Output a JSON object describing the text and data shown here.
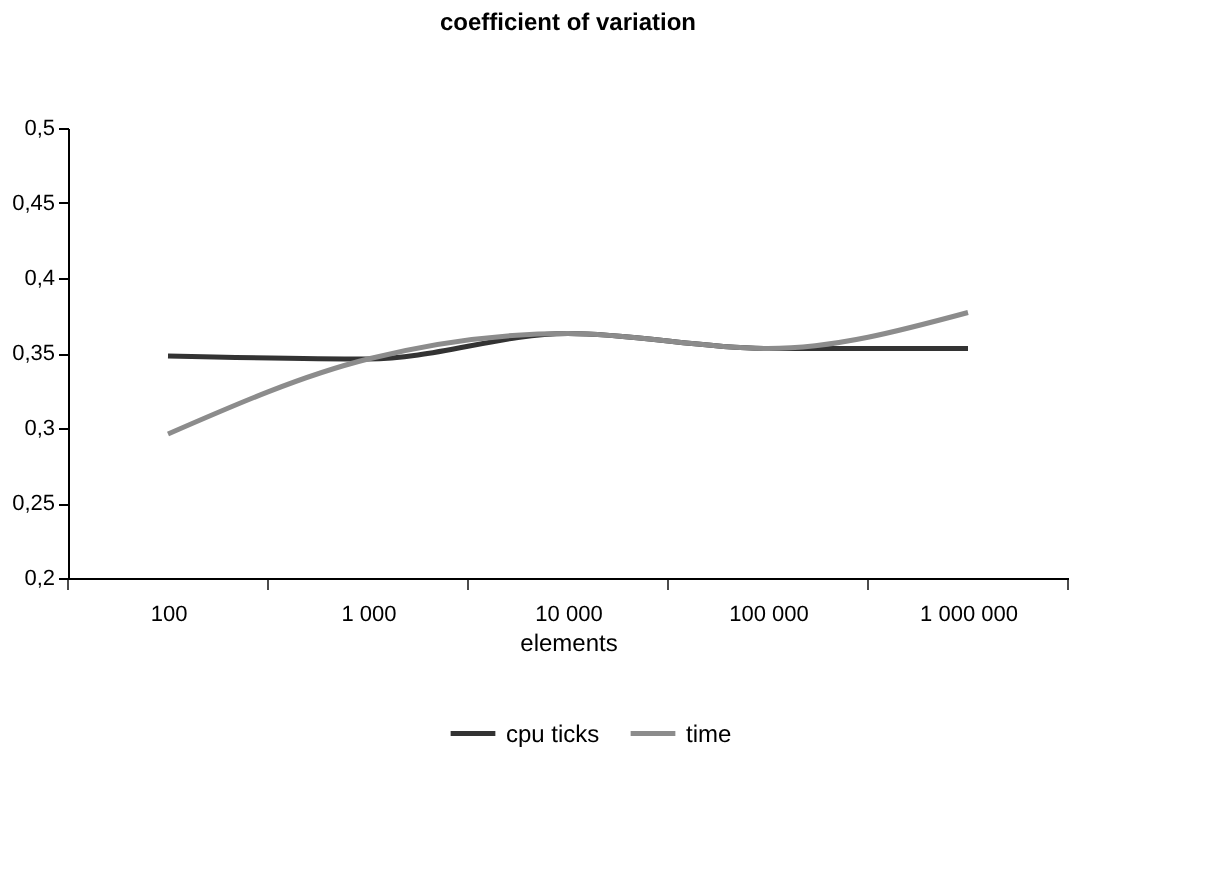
{
  "chart_data": {
    "type": "line",
    "title": "coefficient of variation",
    "xlabel": "elements",
    "categories": [
      "100",
      "1 000",
      "10 000",
      "100 000",
      "1 000 000"
    ],
    "series": [
      {
        "name": "cpu ticks",
        "color": "#333333",
        "values": [
          0.348,
          0.346,
          0.363,
          0.353,
          0.353
        ]
      },
      {
        "name": "time",
        "color": "#8c8c8c",
        "values": [
          0.296,
          0.346,
          0.363,
          0.353,
          0.377
        ]
      }
    ],
    "ylim": [
      0.2,
      0.5
    ],
    "yticks": [
      {
        "value": 0.2,
        "label": "0,2"
      },
      {
        "value": 0.25,
        "label": "0,25"
      },
      {
        "value": 0.3,
        "label": "0,3"
      },
      {
        "value": 0.35,
        "label": "0,35"
      },
      {
        "value": 0.4,
        "label": "0,4"
      },
      {
        "value": 0.45,
        "label": "0,45"
      },
      {
        "value": 0.5,
        "label": "0,5"
      }
    ],
    "grid": false,
    "legend": "bottom",
    "marker": "none",
    "line_style": "solid"
  }
}
